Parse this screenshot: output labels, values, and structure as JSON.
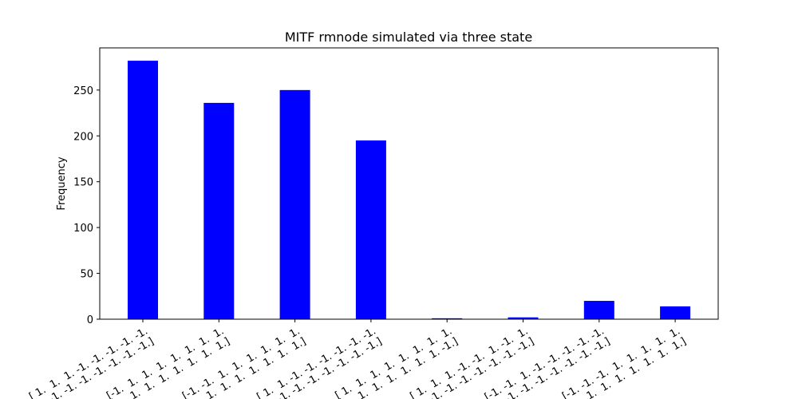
{
  "chart_data": {
    "type": "bar",
    "title": "MITF rmnode simulated via three state",
    "ylabel": "Frequency",
    "categories": [
      [
        "[ 1.  1.  1. -1. -1. -1. -1. -1.",
        " -1. -1. -1. -1. -1. -1. -1.]"
      ],
      [
        "[-1.  1.  1.  1.  1.  1.  1.  1.",
        "  1.  1.  1.  1.  1.  1.  1.]"
      ],
      [
        "[-1. -1.  1.  1.  1.  1.  1.  1.",
        "  1.  1.  1.  1.  1.  1.  1.]"
      ],
      [
        "[ 1.  1. -1. -1. -1. -1. -1. -1.",
        " -1. -1. -1. -1. -1. -1. -1.]"
      ],
      [
        "[ 1.  1.  1.  1.  1.  1.  1.  1.",
        "  1.  1.  1.  1.  1.  1. -1.]"
      ],
      [
        "[ 1.  1.  1. -1. -1.  1. -1.  1.",
        " -1. -1. -1. -1. -1. -1. -1.]"
      ],
      [
        "[-1. -1.  1. -1. -1. -1. -1. -1.",
        " -1. -1. -1. -1. -1. -1. -1.]"
      ],
      [
        "[-1. -1. -1.  1.  1.  1.  1.  1.",
        "  1.  1.  1.  1.  1.  1.  1.]"
      ]
    ],
    "values": [
      282,
      236,
      250,
      195,
      1,
      2,
      20,
      14
    ],
    "color": "#0000ff",
    "ylim": [
      0,
      296
    ],
    "yticks": [
      0,
      50,
      100,
      150,
      200,
      250
    ]
  }
}
